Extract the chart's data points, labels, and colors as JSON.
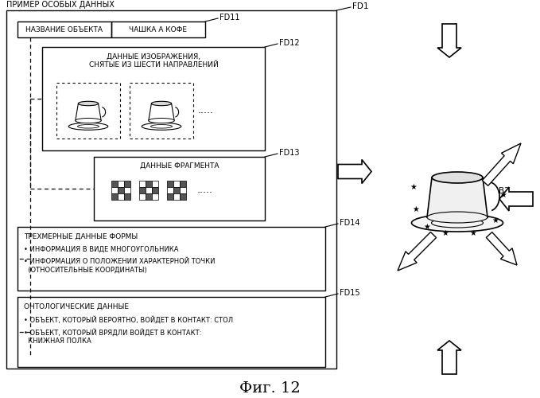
{
  "title_top": "ПРИМЕР ОСОБЫХ ДАННЫХ",
  "label_fd1": "FD1",
  "label_fd11": "FD11",
  "label_fd12": "FD12",
  "label_fd13": "FD13",
  "label_fd14": "FD14",
  "label_fd15": "FD15",
  "label_b2": "B2",
  "fd11_left": "НАЗВАНИЕ ОБЪЕКТА",
  "fd11_right": "ЧАШКА А КОФЕ",
  "fd12_title": "ДАННЫЕ ИЗОБРАЖЕНИЯ,\nСНЯТЫЕ ИЗ ШЕСТИ НАПРАВЛЕНИЙ",
  "fd13_title": "ДАННЫЕ ФРАГМЕНТА",
  "fd14_title": "ТРЕХМЕРНЫЕ ДАННЫЕ ФОРМЫ",
  "fd14_bullet1": "• ИНФОРМАЦИЯ В ВИДЕ МНОГОУГОЛЬНИКА",
  "fd14_bullet2": "• ИНФОРМАЦИЯ О ПОЛОЖЕНИИ ХАРАКТЕРНОЙ ТОЧКИ\n  (ОТНОСИТЕЛЬНЫЕ КООРДИНАТЫ)",
  "fd15_title": "ОНТОЛОГИЧЕСКИЕ ДАННЫЕ",
  "fd15_bullet1": "• ОБЪЕКТ, КОТОРЫЙ ВЕРОЯТНО, ВОЙДЕТ В КОНТАКТ: СТОЛ",
  "fd15_bullet2": "• ОБЪЕКТ, КОТОРЫЙ ВРЯДЛИ ВОЙДЕТ В КОНТАКТ:\n  КНИЖНАЯ ПОЛКА",
  "fig_caption": "Фиг. 12",
  "bg_color": "#ffffff",
  "line_color": "#000000",
  "dots_text": ".....",
  "arrow_color": "#000000"
}
